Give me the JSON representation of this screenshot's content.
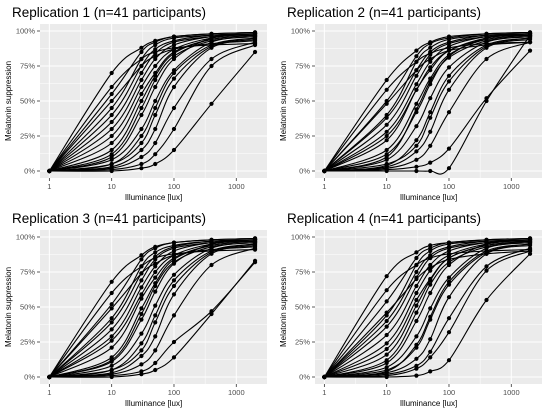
{
  "chart_data": [
    {
      "type": "line",
      "title": "Replication 1 (n=41 participants)",
      "xlabel": "Illuminance [lux]",
      "ylabel": "Melatonin suppression",
      "x_scale": "log10",
      "xlim": [
        1,
        2200
      ],
      "ylim": [
        0,
        100
      ],
      "x_ticks": [
        1,
        10,
        100,
        1000
      ],
      "x_tick_labels": [
        "1",
        "10",
        "100",
        "1000"
      ],
      "y_ticks": [
        0,
        25,
        50,
        75,
        100
      ],
      "y_tick_labels": [
        "0%",
        "25%",
        "50%",
        "75%",
        "100%"
      ],
      "measurement_lux": [
        1,
        10,
        30,
        50,
        100,
        400,
        2000
      ],
      "series": [
        {
          "values": [
            0,
            45,
            80,
            90,
            95,
            97,
            98
          ]
        },
        {
          "values": [
            0,
            10,
            40,
            60,
            80,
            95,
            97
          ]
        },
        {
          "values": [
            0,
            5,
            25,
            45,
            70,
            90,
            95
          ]
        },
        {
          "values": [
            0,
            70,
            88,
            93,
            96,
            98,
            99
          ]
        },
        {
          "values": [
            0,
            30,
            65,
            80,
            90,
            96,
            98
          ]
        },
        {
          "values": [
            0,
            2,
            10,
            20,
            45,
            80,
            92
          ]
        },
        {
          "values": [
            0,
            20,
            55,
            70,
            85,
            94,
            97
          ]
        },
        {
          "values": [
            0,
            55,
            85,
            92,
            96,
            98,
            99
          ]
        },
        {
          "values": [
            0,
            1,
            5,
            12,
            30,
            75,
            90
          ]
        },
        {
          "values": [
            0,
            8,
            30,
            50,
            72,
            92,
            96
          ]
        },
        {
          "values": [
            0,
            40,
            75,
            87,
            93,
            97,
            98
          ]
        },
        {
          "values": [
            0,
            15,
            50,
            68,
            84,
            94,
            97
          ]
        },
        {
          "values": [
            0,
            3,
            15,
            30,
            60,
            88,
            94
          ]
        },
        {
          "values": [
            0,
            60,
            80,
            85,
            88,
            90,
            91
          ]
        },
        {
          "values": [
            0,
            25,
            60,
            75,
            87,
            95,
            98
          ]
        },
        {
          "values": [
            0,
            0,
            2,
            5,
            15,
            48,
            85
          ]
        },
        {
          "values": [
            0,
            35,
            70,
            84,
            92,
            96,
            98
          ]
        },
        {
          "values": [
            0,
            12,
            45,
            65,
            82,
            93,
            96
          ]
        },
        {
          "values": [
            0,
            5,
            20,
            40,
            66,
            89,
            95
          ]
        },
        {
          "values": [
            0,
            50,
            75,
            82,
            87,
            91,
            93
          ]
        }
      ]
    },
    {
      "type": "line",
      "title": "Replication 2 (n=41 participants)",
      "xlabel": "Illuminance [lux]",
      "ylabel": "Melatonin suppression",
      "x_scale": "log10",
      "xlim": [
        1,
        2200
      ],
      "ylim": [
        0,
        100
      ],
      "x_ticks": [
        1,
        10,
        100,
        1000
      ],
      "x_tick_labels": [
        "1",
        "10",
        "100",
        "1000"
      ],
      "y_ticks": [
        0,
        25,
        50,
        75,
        100
      ],
      "y_tick_labels": [
        "0%",
        "25%",
        "50%",
        "75%",
        "100%"
      ],
      "measurement_lux": [
        1,
        10,
        30,
        50,
        100,
        400,
        2000
      ],
      "series": [
        {
          "values": [
            0,
            40,
            78,
            88,
            94,
            97,
            98
          ]
        },
        {
          "values": [
            0,
            12,
            42,
            62,
            82,
            95,
            97
          ]
        },
        {
          "values": [
            0,
            4,
            22,
            42,
            68,
            90,
            95
          ]
        },
        {
          "values": [
            0,
            65,
            86,
            92,
            96,
            98,
            99
          ]
        },
        {
          "values": [
            0,
            28,
            62,
            78,
            89,
            96,
            98
          ]
        },
        {
          "values": [
            0,
            2,
            8,
            18,
            42,
            80,
            92
          ]
        },
        {
          "values": [
            0,
            22,
            58,
            72,
            86,
            94,
            97
          ]
        },
        {
          "values": [
            0,
            50,
            82,
            91,
            95,
            98,
            99
          ]
        },
        {
          "values": [
            0,
            0,
            0,
            0,
            2,
            50,
            97
          ]
        },
        {
          "values": [
            0,
            8,
            32,
            52,
            74,
            92,
            96
          ]
        },
        {
          "values": [
            0,
            38,
            72,
            85,
            92,
            97,
            98
          ]
        },
        {
          "values": [
            0,
            15,
            48,
            66,
            83,
            94,
            97
          ]
        },
        {
          "values": [
            0,
            3,
            14,
            28,
            58,
            88,
            94
          ]
        },
        {
          "values": [
            0,
            58,
            78,
            84,
            88,
            91,
            92
          ]
        },
        {
          "values": [
            0,
            25,
            58,
            74,
            86,
            95,
            98
          ]
        },
        {
          "values": [
            0,
            1,
            3,
            6,
            16,
            52,
            86
          ]
        },
        {
          "values": [
            0,
            33,
            68,
            83,
            91,
            96,
            98
          ]
        },
        {
          "values": [
            0,
            10,
            44,
            64,
            81,
            93,
            96
          ]
        },
        {
          "values": [
            0,
            5,
            18,
            38,
            64,
            89,
            95
          ]
        },
        {
          "values": [
            0,
            48,
            72,
            80,
            86,
            90,
            92
          ]
        }
      ]
    },
    {
      "type": "line",
      "title": "Replication 3 (n=41 participants)",
      "xlabel": "Illuminance [lux]",
      "ylabel": "Melatonin suppression",
      "x_scale": "log10",
      "xlim": [
        1,
        2200
      ],
      "ylim": [
        0,
        100
      ],
      "x_ticks": [
        1,
        10,
        100,
        1000
      ],
      "x_tick_labels": [
        "1",
        "10",
        "100",
        "1000"
      ],
      "y_ticks": [
        0,
        25,
        50,
        75,
        100
      ],
      "y_tick_labels": [
        "0%",
        "25%",
        "50%",
        "75%",
        "100%"
      ],
      "measurement_lux": [
        1,
        10,
        30,
        50,
        100,
        400,
        2000
      ],
      "series": [
        {
          "values": [
            0,
            42,
            79,
            89,
            94,
            97,
            98
          ]
        },
        {
          "values": [
            0,
            11,
            41,
            61,
            81,
            95,
            97
          ]
        },
        {
          "values": [
            0,
            5,
            24,
            44,
            69,
            90,
            95
          ]
        },
        {
          "values": [
            0,
            68,
            87,
            93,
            96,
            98,
            99
          ]
        },
        {
          "values": [
            0,
            29,
            64,
            79,
            90,
            96,
            98
          ]
        },
        {
          "values": [
            0,
            2,
            9,
            19,
            44,
            80,
            92
          ]
        },
        {
          "values": [
            0,
            21,
            56,
            71,
            85,
            94,
            97
          ]
        },
        {
          "values": [
            0,
            52,
            84,
            92,
            96,
            98,
            99
          ]
        },
        {
          "values": [
            0,
            1,
            4,
            10,
            25,
            47,
            82
          ]
        },
        {
          "values": [
            0,
            8,
            31,
            51,
            73,
            92,
            96
          ]
        },
        {
          "values": [
            0,
            39,
            74,
            86,
            93,
            97,
            98
          ]
        },
        {
          "values": [
            0,
            14,
            49,
            67,
            84,
            94,
            97
          ]
        },
        {
          "values": [
            0,
            3,
            15,
            29,
            59,
            88,
            94
          ]
        },
        {
          "values": [
            0,
            60,
            79,
            85,
            88,
            90,
            91
          ]
        },
        {
          "values": [
            0,
            26,
            59,
            75,
            87,
            95,
            98
          ]
        },
        {
          "values": [
            0,
            0,
            2,
            5,
            14,
            45,
            83
          ]
        },
        {
          "values": [
            0,
            34,
            69,
            84,
            92,
            96,
            98
          ]
        },
        {
          "values": [
            0,
            12,
            45,
            65,
            82,
            93,
            96
          ]
        },
        {
          "values": [
            0,
            5,
            19,
            39,
            65,
            89,
            95
          ]
        },
        {
          "values": [
            0,
            49,
            74,
            81,
            87,
            91,
            93
          ]
        }
      ]
    },
    {
      "type": "line",
      "title": "Replication 4 (n=41 participants)",
      "xlabel": "Illuminance [lux]",
      "ylabel": "Melatonin suppression",
      "x_scale": "log10",
      "xlim": [
        1,
        2200
      ],
      "ylim": [
        0,
        100
      ],
      "x_ticks": [
        1,
        10,
        100,
        1000
      ],
      "x_tick_labels": [
        "1",
        "10",
        "100",
        "1000"
      ],
      "y_ticks": [
        0,
        25,
        50,
        75,
        100
      ],
      "y_tick_labels": [
        "0%",
        "25%",
        "50%",
        "75%",
        "100%"
      ],
      "measurement_lux": [
        1,
        10,
        30,
        50,
        100,
        400,
        2000
      ],
      "series": [
        {
          "values": [
            0,
            44,
            80,
            90,
            95,
            97,
            98
          ]
        },
        {
          "values": [
            0,
            10,
            40,
            60,
            80,
            95,
            97
          ]
        },
        {
          "values": [
            0,
            4,
            23,
            43,
            68,
            90,
            95
          ]
        },
        {
          "values": [
            0,
            72,
            89,
            94,
            96,
            98,
            99
          ]
        },
        {
          "values": [
            0,
            30,
            65,
            80,
            90,
            96,
            98
          ]
        },
        {
          "values": [
            0,
            2,
            8,
            18,
            42,
            79,
            92
          ]
        },
        {
          "values": [
            0,
            20,
            55,
            70,
            85,
            94,
            97
          ]
        },
        {
          "values": [
            0,
            54,
            85,
            92,
            96,
            98,
            99
          ]
        },
        {
          "values": [
            0,
            1,
            6,
            14,
            32,
            76,
            90
          ]
        },
        {
          "values": [
            0,
            7,
            29,
            49,
            71,
            92,
            96
          ]
        },
        {
          "values": [
            0,
            40,
            75,
            87,
            93,
            97,
            98
          ]
        },
        {
          "values": [
            0,
            16,
            51,
            69,
            85,
            94,
            97
          ]
        },
        {
          "values": [
            0,
            3,
            13,
            27,
            57,
            88,
            94
          ]
        },
        {
          "values": [
            0,
            62,
            80,
            85,
            88,
            90,
            91
          ]
        },
        {
          "values": [
            0,
            24,
            60,
            76,
            87,
            95,
            98
          ]
        },
        {
          "values": [
            0,
            0,
            1,
            4,
            12,
            55,
            88
          ]
        },
        {
          "values": [
            0,
            36,
            71,
            85,
            92,
            96,
            98
          ]
        },
        {
          "values": [
            0,
            12,
            46,
            66,
            82,
            93,
            96
          ]
        },
        {
          "values": [
            0,
            5,
            21,
            41,
            66,
            89,
            95
          ]
        },
        {
          "values": [
            0,
            46,
            70,
            78,
            84,
            88,
            90
          ]
        }
      ]
    }
  ]
}
